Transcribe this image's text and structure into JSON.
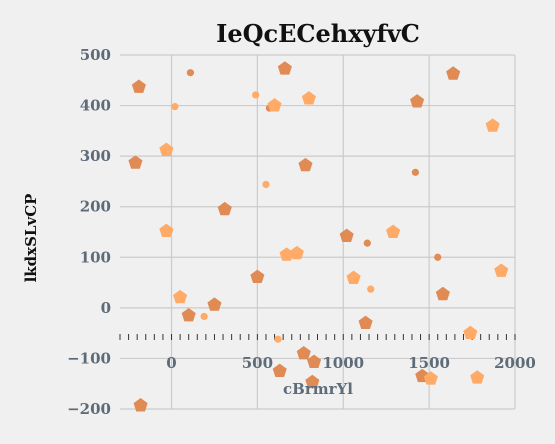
{
  "chart_data": {
    "type": "scatter",
    "title": "IeQcECehxyfvC",
    "xlabel": "cBrmrYl",
    "ylabel": "lkdxSLvCP",
    "xlim": [
      -300,
      2000
    ],
    "ylim": [
      -200,
      500
    ],
    "x_ticks": [
      0,
      500,
      1000,
      1500,
      2000
    ],
    "x_tick_labels": [
      "0",
      "500",
      "1000",
      "1500",
      "2000"
    ],
    "y_ticks": [
      -200,
      -100,
      0,
      100,
      200,
      300,
      400,
      500
    ],
    "y_tick_labels": [
      "−200",
      "−100",
      "0",
      "100",
      "200",
      "300",
      "400",
      "500"
    ],
    "grid": true,
    "colors": {
      "dark": "#e08a54",
      "light": "#ffaa66"
    },
    "series": [
      {
        "color": "#e08a54",
        "points": [
          {
            "x": -190,
            "y": 437,
            "size": "large"
          },
          {
            "x": 110,
            "y": 465,
            "size": "small"
          },
          {
            "x": -210,
            "y": 287,
            "size": "large"
          },
          {
            "x": 310,
            "y": 195,
            "size": "large"
          },
          {
            "x": 570,
            "y": 395,
            "size": "small"
          },
          {
            "x": 660,
            "y": 473,
            "size": "large"
          },
          {
            "x": 780,
            "y": 282,
            "size": "large"
          },
          {
            "x": 500,
            "y": 61,
            "size": "large"
          },
          {
            "x": 250,
            "y": 6,
            "size": "large"
          },
          {
            "x": 100,
            "y": -15,
            "size": "large"
          },
          {
            "x": 630,
            "y": -125,
            "size": "large"
          },
          {
            "x": 770,
            "y": -90,
            "size": "large"
          },
          {
            "x": 830,
            "y": -107,
            "size": "large"
          },
          {
            "x": 820,
            "y": -147,
            "size": "large"
          },
          {
            "x": 1020,
            "y": 142,
            "size": "large"
          },
          {
            "x": 1140,
            "y": 128,
            "size": "small"
          },
          {
            "x": 1130,
            "y": -30,
            "size": "large"
          },
          {
            "x": 1420,
            "y": 268,
            "size": "small"
          },
          {
            "x": 1430,
            "y": 408,
            "size": "large"
          },
          {
            "x": 1640,
            "y": 463,
            "size": "large"
          },
          {
            "x": 1550,
            "y": 100,
            "size": "small"
          },
          {
            "x": 1580,
            "y": 27,
            "size": "large"
          },
          {
            "x": 1460,
            "y": -135,
            "size": "large"
          },
          {
            "x": -180,
            "y": -193,
            "size": "large"
          }
        ]
      },
      {
        "color": "#ffaa66",
        "points": [
          {
            "x": 20,
            "y": 398,
            "size": "small"
          },
          {
            "x": -30,
            "y": 312,
            "size": "large"
          },
          {
            "x": -30,
            "y": 152,
            "size": "large"
          },
          {
            "x": 50,
            "y": 21,
            "size": "large"
          },
          {
            "x": 190,
            "y": -17,
            "size": "small"
          },
          {
            "x": 490,
            "y": 421,
            "size": "small"
          },
          {
            "x": 600,
            "y": 400,
            "size": "large"
          },
          {
            "x": 800,
            "y": 414,
            "size": "large"
          },
          {
            "x": 550,
            "y": 244,
            "size": "small"
          },
          {
            "x": 670,
            "y": 105,
            "size": "large"
          },
          {
            "x": 730,
            "y": 108,
            "size": "large"
          },
          {
            "x": 620,
            "y": -62,
            "size": "small"
          },
          {
            "x": 1060,
            "y": 59,
            "size": "large"
          },
          {
            "x": 1160,
            "y": 37,
            "size": "small"
          },
          {
            "x": 1290,
            "y": 150,
            "size": "large"
          },
          {
            "x": 1870,
            "y": 360,
            "size": "large"
          },
          {
            "x": 1920,
            "y": 73,
            "size": "large"
          },
          {
            "x": 1740,
            "y": -50,
            "size": "large"
          },
          {
            "x": 1510,
            "y": -140,
            "size": "large"
          },
          {
            "x": 1780,
            "y": -138,
            "size": "large"
          }
        ]
      }
    ]
  }
}
